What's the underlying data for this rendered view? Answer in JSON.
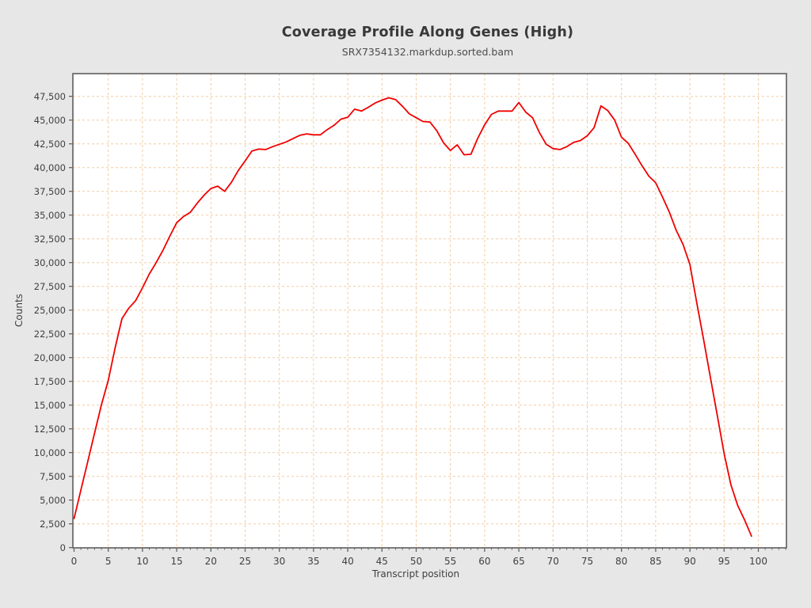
{
  "chart_data": {
    "type": "line",
    "title": "Coverage Profile Along Genes (High)",
    "subtitle": "SRX7354132.markdup.sorted.bam",
    "xlabel": "Transcript position",
    "ylabel": "Counts",
    "x_ticks": [
      0,
      5,
      10,
      15,
      20,
      25,
      30,
      35,
      40,
      45,
      50,
      55,
      60,
      65,
      70,
      75,
      80,
      85,
      90,
      95,
      100
    ],
    "y_ticks": [
      0,
      2500,
      5000,
      7500,
      10000,
      12500,
      15000,
      17500,
      20000,
      22500,
      25000,
      27500,
      30000,
      32500,
      35000,
      37500,
      40000,
      42500,
      45000,
      47500
    ],
    "xlim": [
      0,
      104
    ],
    "ylim": [
      0,
      49900
    ],
    "grid": true,
    "legend": "none",
    "colors": {
      "line": "#f00000",
      "grid": "#f4cba1",
      "plot_background": "#ffffff",
      "page_background": "#e7e7e7",
      "panel_border": "#6e6e6e",
      "tick": "#5a5a5a"
    },
    "series": [
      {
        "name": "SRX7354132.markdup.sorted.bam",
        "x_start": 0,
        "x_step": 1,
        "n_points": 100,
        "values": [
          3050,
          6050,
          9050,
          12050,
          15050,
          17600,
          21000,
          24100,
          25200,
          26000,
          27350,
          28800,
          30000,
          31300,
          32800,
          34200,
          34850,
          35300,
          36250,
          37100,
          37800,
          38050,
          37500,
          38450,
          39700,
          40700,
          41750,
          41950,
          41900,
          42200,
          42450,
          42700,
          43050,
          43400,
          43550,
          43450,
          43450,
          44000,
          44450,
          45100,
          45300,
          46150,
          45950,
          46350,
          46800,
          47100,
          47350,
          47150,
          46450,
          45650,
          45250,
          44850,
          44800,
          43900,
          42600,
          41800,
          42400,
          41350,
          41400,
          43100,
          44500,
          45600,
          45950,
          45950,
          45950,
          46850,
          45850,
          45250,
          43700,
          42450,
          42000,
          41900,
          42200,
          42650,
          42850,
          43350,
          44200,
          46500,
          46000,
          45000,
          43200,
          42550,
          41400,
          40200,
          39100,
          38400,
          36900,
          35300,
          33400,
          31900,
          29800,
          25800,
          21900,
          17900,
          13900,
          9900,
          6600,
          4400,
          2900,
          1200
        ]
      }
    ]
  }
}
